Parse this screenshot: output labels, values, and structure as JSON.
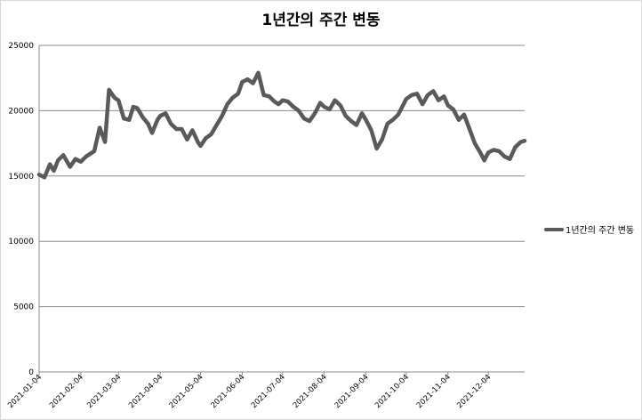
{
  "chart_data": {
    "type": "line",
    "title": "1년간의 주간 변동",
    "xlabel": "",
    "ylabel": "",
    "ylim": [
      0,
      25000
    ],
    "yticks": [
      0,
      5000,
      10000,
      15000,
      20000,
      25000
    ],
    "xlim": [
      "2021-01-04",
      "2021-12-31"
    ],
    "x_tick_labels": [
      "2021-01-04",
      "2021-02-04",
      "2021-03-04",
      "2021-04-04",
      "2021-05-04",
      "2021-06-04",
      "2021-07-04",
      "2021-08-04",
      "2021-09-04",
      "2021-10-04",
      "2021-11-04",
      "2021-12-04"
    ],
    "grid": true,
    "legend_position": "right",
    "line_color": "#5a5a5a",
    "series": [
      {
        "name": "1년간의 주간 변동",
        "x": [
          "2021-01-04",
          "2021-01-08",
          "2021-01-12",
          "2021-01-15",
          "2021-01-18",
          "2021-01-22",
          "2021-01-27",
          "2021-01-31",
          "2021-02-04",
          "2021-02-08",
          "2021-02-14",
          "2021-02-18",
          "2021-02-22",
          "2021-02-25",
          "2021-03-01",
          "2021-03-04",
          "2021-03-08",
          "2021-03-12",
          "2021-03-15",
          "2021-03-18",
          "2021-03-22",
          "2021-03-26",
          "2021-03-29",
          "2021-04-02",
          "2021-04-04",
          "2021-04-08",
          "2021-04-12",
          "2021-04-16",
          "2021-04-20",
          "2021-04-24",
          "2021-04-28",
          "2021-05-02",
          "2021-05-04",
          "2021-05-08",
          "2021-05-12",
          "2021-05-16",
          "2021-05-20",
          "2021-05-24",
          "2021-05-28",
          "2021-06-01",
          "2021-06-04",
          "2021-06-08",
          "2021-06-12",
          "2021-06-16",
          "2021-06-20",
          "2021-06-24",
          "2021-06-28",
          "2021-07-01",
          "2021-07-04",
          "2021-07-08",
          "2021-07-12",
          "2021-07-16",
          "2021-07-20",
          "2021-07-24",
          "2021-07-28",
          "2021-08-01",
          "2021-08-04",
          "2021-08-08",
          "2021-08-12",
          "2021-08-16",
          "2021-08-20",
          "2021-08-24",
          "2021-08-28",
          "2021-09-01",
          "2021-09-04",
          "2021-09-08",
          "2021-09-12",
          "2021-09-16",
          "2021-09-20",
          "2021-09-24",
          "2021-09-28",
          "2021-10-01",
          "2021-10-04",
          "2021-10-08",
          "2021-10-12",
          "2021-10-16",
          "2021-10-20",
          "2021-10-24",
          "2021-10-28",
          "2021-11-01",
          "2021-11-04",
          "2021-11-08",
          "2021-11-12",
          "2021-11-16",
          "2021-11-20",
          "2021-11-24",
          "2021-11-28",
          "2021-12-01",
          "2021-12-04",
          "2021-12-08",
          "2021-12-12",
          "2021-12-16",
          "2021-12-20",
          "2021-12-24",
          "2021-12-28",
          "2021-12-31"
        ],
        "values": [
          15100,
          14900,
          15900,
          15400,
          16200,
          16600,
          15700,
          16300,
          16100,
          16500,
          16900,
          18700,
          17600,
          21600,
          21000,
          20800,
          19400,
          19300,
          20300,
          20200,
          19500,
          19000,
          18300,
          19300,
          19600,
          19800,
          19000,
          18600,
          18600,
          17800,
          18500,
          17600,
          17300,
          17900,
          18200,
          18900,
          19600,
          20500,
          21000,
          21300,
          22200,
          22400,
          22100,
          22900,
          21200,
          21100,
          20700,
          20500,
          20800,
          20700,
          20300,
          20000,
          19400,
          19200,
          19800,
          20600,
          20300,
          20100,
          20800,
          20400,
          19600,
          19200,
          18900,
          19800,
          19300,
          18500,
          17100,
          17800,
          19000,
          19300,
          19700,
          20300,
          20900,
          21200,
          21300,
          20500,
          21200,
          21500,
          20800,
          21100,
          20400,
          20100,
          19300,
          19700,
          18600,
          17500,
          16800,
          16200,
          16800,
          17000,
          16900,
          16500,
          16300,
          17200,
          17600,
          17700
        ]
      }
    ]
  }
}
